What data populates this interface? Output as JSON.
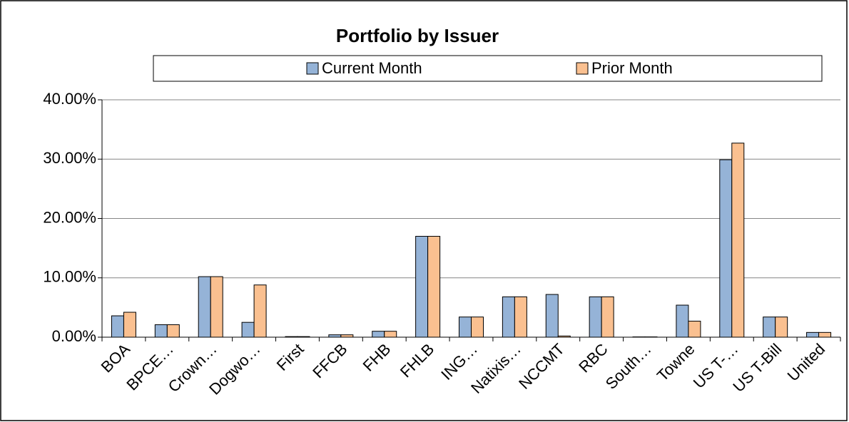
{
  "chart_data": {
    "type": "bar",
    "title": "Portfolio by Issuer",
    "categories": [
      "BOA",
      "BPCE…",
      "Crown…",
      "Dogwo…",
      "First",
      "FFCB",
      "FHB",
      "FHLB",
      "ING…",
      "Natixis…",
      "NCCMT",
      "RBC",
      "South…",
      "Towne",
      "US T-…",
      "US T-Bill",
      "United"
    ],
    "series": [
      {
        "name": "Current Month",
        "color": "#95b3d7",
        "values": [
          3.6,
          2.1,
          10.2,
          2.5,
          0.1,
          0.4,
          1.0,
          17.0,
          3.4,
          6.8,
          7.2,
          6.8,
          0.05,
          5.4,
          29.9,
          3.4,
          0.8
        ]
      },
      {
        "name": "Prior Month",
        "color": "#fac090",
        "values": [
          4.2,
          2.1,
          10.2,
          8.8,
          0.1,
          0.4,
          1.0,
          17.0,
          3.4,
          6.8,
          0.2,
          6.8,
          0.05,
          2.7,
          32.7,
          3.4,
          0.8
        ]
      }
    ],
    "ylim": [
      0,
      40
    ],
    "yticks": [
      {
        "value": 0,
        "label": "0.00%"
      },
      {
        "value": 10,
        "label": "10.00%"
      },
      {
        "value": 20,
        "label": "20.00%"
      },
      {
        "value": 30,
        "label": "30.00%"
      },
      {
        "value": 40,
        "label": "40.00%"
      }
    ],
    "grid": true,
    "legend": "top"
  }
}
